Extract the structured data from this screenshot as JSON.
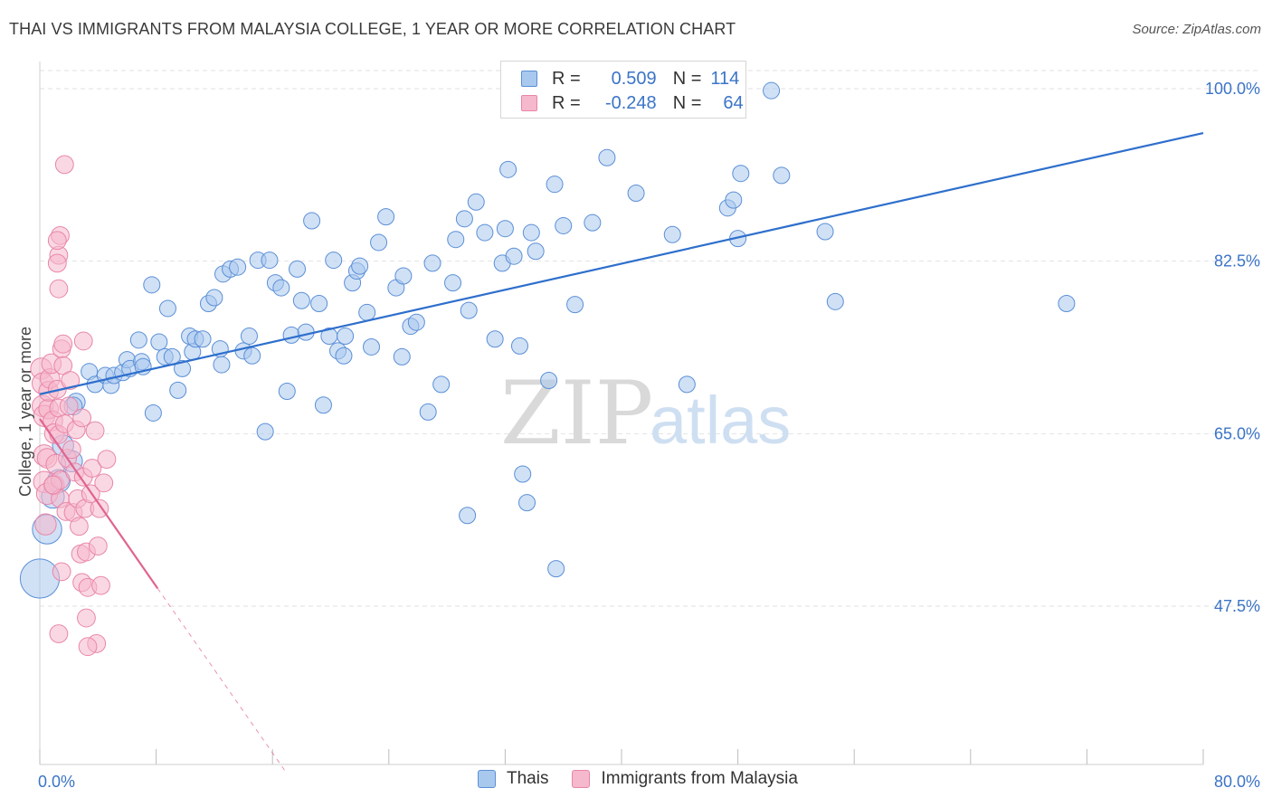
{
  "title": "THAI VS IMMIGRANTS FROM MALAYSIA COLLEGE, 1 YEAR OR MORE CORRELATION CHART",
  "source": "Source: ZipAtlas.com",
  "watermark": {
    "zip": "ZIP",
    "atlas": "atlas"
  },
  "legend": {
    "rows": [
      {
        "r_label": "R =",
        "r_value": "0.509",
        "n_label": "N =",
        "n_value": "114"
      },
      {
        "r_label": "R =",
        "r_value": "-0.248",
        "n_label": "N =",
        "n_value": "64"
      }
    ]
  },
  "colors": {
    "thais_fill": "#a9c8ee",
    "thais_stroke": "#5b8fd6",
    "thais_line": "#2e6fcc",
    "malaysia_fill": "#f5b8cc",
    "malaysia_stroke": "#e886a8",
    "malaysia_line": "#e0648f",
    "grid": "#e2e2e2",
    "axis_text": "#3b74c7"
  },
  "chart_data": {
    "type": "scatter",
    "title": "THAI VS IMMIGRANTS FROM MALAYSIA COLLEGE, 1 YEAR OR MORE CORRELATION CHART",
    "xlabel": "",
    "ylabel": "College, 1 year or more",
    "xlim": [
      0,
      80
    ],
    "ylim": [
      30,
      102
    ],
    "x_tick_labels": [
      "0.0%",
      "80.0%"
    ],
    "y_ticks": [
      47.5,
      65.0,
      82.5,
      100.0
    ],
    "y_tick_labels": [
      "47.5%",
      "65.0%",
      "82.5%",
      "100.0%"
    ],
    "series": [
      {
        "name": "Thais",
        "r": 0.509,
        "n": 114,
        "trend": {
          "x": [
            0,
            80
          ],
          "y": [
            69.0,
            95.5
          ]
        },
        "points": [
          [
            0.0,
            50.3,
            24
          ],
          [
            0.5,
            55.3,
            18
          ],
          [
            0.9,
            58.6,
            14
          ],
          [
            1.3,
            60.2,
            14
          ],
          [
            2.2,
            62.2,
            13
          ],
          [
            1.6,
            63.8,
            13
          ],
          [
            2.5,
            68.2,
            11
          ],
          [
            2.3,
            67.8,
            11
          ],
          [
            3.4,
            71.3,
            10
          ],
          [
            3.8,
            70.0,
            10
          ],
          [
            4.5,
            70.9,
            10
          ],
          [
            4.9,
            69.9,
            10
          ],
          [
            5.1,
            70.9,
            10
          ],
          [
            5.7,
            71.2,
            10
          ],
          [
            6.0,
            72.5,
            10
          ],
          [
            6.2,
            71.6,
            10
          ],
          [
            7.0,
            72.3,
            10
          ],
          [
            6.8,
            74.5,
            10
          ],
          [
            7.1,
            71.8,
            10
          ],
          [
            7.7,
            80.1,
            10
          ],
          [
            7.8,
            67.1,
            10
          ],
          [
            8.2,
            74.3,
            10
          ],
          [
            8.6,
            72.8,
            10
          ],
          [
            8.8,
            77.7,
            10
          ],
          [
            9.1,
            72.8,
            10
          ],
          [
            9.5,
            69.4,
            10
          ],
          [
            9.8,
            71.6,
            10
          ],
          [
            10.3,
            74.9,
            10
          ],
          [
            10.5,
            73.3,
            10
          ],
          [
            10.7,
            74.6,
            10
          ],
          [
            11.2,
            74.6,
            10
          ],
          [
            11.6,
            78.2,
            10
          ],
          [
            12.0,
            78.8,
            10
          ],
          [
            12.4,
            73.6,
            10
          ],
          [
            12.5,
            72.0,
            10
          ],
          [
            12.6,
            81.2,
            10
          ],
          [
            13.1,
            81.7,
            10
          ],
          [
            13.6,
            81.9,
            10
          ],
          [
            14.0,
            73.4,
            10
          ],
          [
            14.4,
            74.9,
            10
          ],
          [
            14.6,
            72.9,
            10
          ],
          [
            15.0,
            82.6,
            10
          ],
          [
            15.5,
            65.2,
            10
          ],
          [
            15.8,
            82.6,
            10
          ],
          [
            16.2,
            80.3,
            10
          ],
          [
            16.6,
            79.8,
            10
          ],
          [
            17.0,
            69.3,
            10
          ],
          [
            17.3,
            75.0,
            10
          ],
          [
            17.7,
            81.7,
            10
          ],
          [
            18.0,
            78.5,
            10
          ],
          [
            18.3,
            75.3,
            10
          ],
          [
            18.7,
            86.6,
            10
          ],
          [
            19.2,
            78.2,
            10
          ],
          [
            19.5,
            67.9,
            10
          ],
          [
            19.9,
            74.9,
            10
          ],
          [
            20.2,
            82.6,
            10
          ],
          [
            20.5,
            73.4,
            10
          ],
          [
            20.9,
            72.9,
            10
          ],
          [
            21.0,
            74.9,
            10
          ],
          [
            21.5,
            80.3,
            10
          ],
          [
            21.8,
            81.5,
            10
          ],
          [
            22.0,
            82.0,
            10
          ],
          [
            22.5,
            77.3,
            10
          ],
          [
            22.8,
            73.8,
            10
          ],
          [
            23.3,
            84.4,
            10
          ],
          [
            23.8,
            87.0,
            10
          ],
          [
            24.5,
            79.8,
            10
          ],
          [
            24.9,
            72.8,
            10
          ],
          [
            25.0,
            81.0,
            10
          ],
          [
            25.5,
            75.9,
            10
          ],
          [
            25.9,
            76.3,
            10
          ],
          [
            26.7,
            67.2,
            10
          ],
          [
            27.0,
            82.3,
            10
          ],
          [
            27.6,
            70.0,
            10
          ],
          [
            28.4,
            80.3,
            10
          ],
          [
            28.6,
            84.7,
            10
          ],
          [
            29.2,
            86.8,
            10
          ],
          [
            29.5,
            77.5,
            10
          ],
          [
            29.4,
            56.7,
            10
          ],
          [
            30.0,
            88.5,
            10
          ],
          [
            30.6,
            85.4,
            10
          ],
          [
            31.3,
            74.6,
            10
          ],
          [
            31.8,
            82.3,
            10
          ],
          [
            32.0,
            85.8,
            10
          ],
          [
            32.2,
            91.8,
            10
          ],
          [
            32.6,
            83.0,
            10
          ],
          [
            33.0,
            73.9,
            10
          ],
          [
            33.2,
            60.9,
            10
          ],
          [
            33.8,
            85.4,
            10
          ],
          [
            34.1,
            83.5,
            10
          ],
          [
            33.5,
            58.0,
            10
          ],
          [
            35.0,
            70.4,
            10
          ],
          [
            35.4,
            90.3,
            10
          ],
          [
            35.5,
            51.3,
            10
          ],
          [
            36.0,
            86.1,
            10
          ],
          [
            36.8,
            78.1,
            10
          ],
          [
            38.0,
            86.4,
            10
          ],
          [
            39.0,
            93.0,
            10
          ],
          [
            41.0,
            89.4,
            10
          ],
          [
            43.5,
            85.2,
            10
          ],
          [
            44.5,
            70.0,
            10
          ],
          [
            47.3,
            87.9,
            10
          ],
          [
            47.7,
            88.7,
            10
          ],
          [
            48.0,
            84.8,
            10
          ],
          [
            48.2,
            91.4,
            10
          ],
          [
            50.3,
            99.8,
            10
          ],
          [
            51.0,
            91.2,
            10
          ],
          [
            54.0,
            85.5,
            10
          ],
          [
            54.7,
            78.4,
            10
          ],
          [
            70.6,
            78.2,
            10
          ]
        ]
      },
      {
        "name": "Immigrants from Malaysia",
        "r": -0.248,
        "n": 64,
        "trend": {
          "x": [
            0,
            8.1
          ],
          "y": [
            66.5,
            49.3
          ]
        },
        "trend_extension": {
          "x": [
            8.1,
            17.0
          ],
          "y": [
            49.3,
            30.5
          ]
        },
        "points": [
          [
            0.1,
            71.6,
            13
          ],
          [
            0.2,
            70.1,
            13
          ],
          [
            0.2,
            67.8,
            13
          ],
          [
            0.3,
            66.8,
            13
          ],
          [
            0.3,
            62.8,
            13
          ],
          [
            0.3,
            60.1,
            13
          ],
          [
            0.4,
            55.8,
            13
          ],
          [
            0.5,
            58.9,
            13
          ],
          [
            0.5,
            62.5,
            12
          ],
          [
            0.6,
            67.5,
            12
          ],
          [
            0.6,
            69.3,
            12
          ],
          [
            0.7,
            70.6,
            12
          ],
          [
            0.8,
            72.1,
            12
          ],
          [
            0.9,
            66.3,
            12
          ],
          [
            1.0,
            65.0,
            12
          ],
          [
            1.0,
            59.8,
            12
          ],
          [
            1.1,
            61.9,
            12
          ],
          [
            1.2,
            69.5,
            11
          ],
          [
            1.3,
            67.6,
            11
          ],
          [
            1.3,
            64.9,
            11
          ],
          [
            1.4,
            60.3,
            11
          ],
          [
            1.4,
            58.4,
            11
          ],
          [
            1.5,
            73.6,
            11
          ],
          [
            1.6,
            71.9,
            11
          ],
          [
            1.7,
            66.0,
            11
          ],
          [
            1.8,
            57.1,
            11
          ],
          [
            1.9,
            62.5,
            11
          ],
          [
            2.0,
            67.8,
            11
          ],
          [
            2.1,
            70.4,
            11
          ],
          [
            2.2,
            63.4,
            11
          ],
          [
            2.3,
            57.0,
            11
          ],
          [
            2.4,
            61.1,
            11
          ],
          [
            2.5,
            65.4,
            11
          ],
          [
            2.6,
            58.4,
            11
          ],
          [
            2.7,
            55.6,
            11
          ],
          [
            2.8,
            52.8,
            11
          ],
          [
            2.9,
            49.9,
            11
          ],
          [
            2.9,
            66.6,
            11
          ],
          [
            3.0,
            60.6,
            11
          ],
          [
            3.1,
            57.4,
            11
          ],
          [
            3.2,
            53.0,
            11
          ],
          [
            3.3,
            49.4,
            11
          ],
          [
            3.5,
            58.9,
            11
          ],
          [
            3.6,
            61.5,
            11
          ],
          [
            3.8,
            65.3,
            11
          ],
          [
            3.9,
            43.7,
            11
          ],
          [
            4.0,
            53.6,
            11
          ],
          [
            4.1,
            57.4,
            11
          ],
          [
            4.2,
            49.6,
            11
          ],
          [
            4.4,
            60.0,
            11
          ],
          [
            4.6,
            62.4,
            11
          ],
          [
            1.3,
            83.1,
            11
          ],
          [
            1.4,
            85.1,
            11
          ],
          [
            1.2,
            84.6,
            11
          ],
          [
            1.2,
            82.3,
            11
          ],
          [
            1.3,
            79.7,
            11
          ],
          [
            1.7,
            92.3,
            11
          ],
          [
            1.6,
            74.1,
            11
          ],
          [
            0.9,
            59.8,
            11
          ],
          [
            3.0,
            74.4,
            11
          ],
          [
            3.2,
            46.3,
            11
          ],
          [
            3.3,
            43.4,
            11
          ],
          [
            1.3,
            44.7,
            11
          ],
          [
            1.5,
            51.0,
            11
          ]
        ]
      }
    ]
  }
}
